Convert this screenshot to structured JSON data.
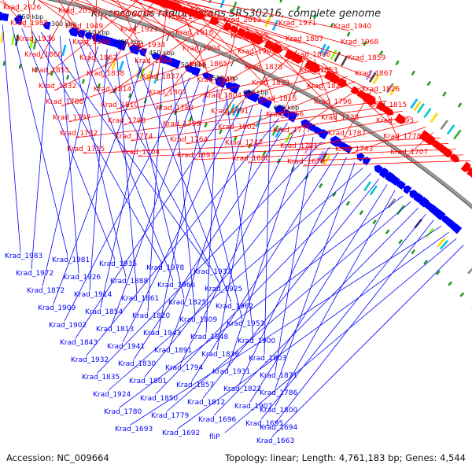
{
  "title": "Kineococcus radiotolerans SRS30216, complete genome",
  "accession": "Accession: NC_009664",
  "topology": "Topology: linear; Length: 4,761,183 bp; Genes: 4,544",
  "colors": {
    "forward": "#ff0000",
    "reverse": "#0000ff",
    "backbone": "#999999"
  },
  "scale_ticks": [
    {
      "label": "250 kbp",
      "value_kbp": 250
    },
    {
      "label": "300 kbp",
      "value_kbp": 300
    },
    {
      "label": "350 kbp",
      "value_kbp": 350
    },
    {
      "label": "400 kbp",
      "value_kbp": 400
    },
    {
      "label": "450 kbp",
      "value_kbp": 450
    },
    {
      "label": "500 kbp",
      "value_kbp": 500
    },
    {
      "label": "550 kbp",
      "value_kbp": 550
    },
    {
      "label": "600 kbp",
      "value_kbp": 600
    },
    {
      "label": "650 kbp",
      "value_kbp": 650
    }
  ],
  "red_labels": [
    "Krad_2026",
    "Krad_2033",
    "Krad_2034",
    "Krad_2006",
    "Krad_2013",
    "Krad_1971",
    "Krad_1940",
    "Krad_1985",
    "Krad_1949",
    "Krad_1923",
    "Krad_1918",
    "Krad_1895",
    "Krad_1887",
    "Krad_1968",
    "Krad_1936",
    "Krad_1908",
    "Krad_1934",
    "Krad_1904",
    "Krad_1903",
    "Krad_1886",
    "Krad_1859",
    "Krad_1860",
    "Krad_1862",
    "Krad_1864",
    "Krad_1865",
    "Krad_1878",
    "Krad_1863",
    "Krad_1867",
    "Krad_1855",
    "Krad_1838",
    "Krad_1837",
    "Krad_1840",
    "Krad_1839",
    "Krad_1827",
    "Krad_1826",
    "Krad_1832",
    "Krad_1814",
    "Krad_1807",
    "Krad_1804",
    "Krad_1816",
    "Krad_1796",
    "Krad_1815",
    "Krad_1788",
    "Krad_1810",
    "Krad_1783",
    "Krad_1791",
    "Krad_1766",
    "Krad_1738",
    "Krad_1795",
    "Krad_1797",
    "Krad_1798",
    "Krad_1799",
    "Krad_1802",
    "Krad_1777",
    "Krad_1787",
    "Krad_1778",
    "Krad_1782",
    "Krad_1774",
    "Krad_1764",
    "Krad_1747",
    "Krad_1721",
    "Krad_1743",
    "Krad_1707",
    "Krad_1715",
    "Krad_1704",
    "Krad_1697",
    "Krad_1680",
    "Krad_1679"
  ],
  "blue_labels": [
    "Krad_1983",
    "Krad_1981",
    "Krad_1935",
    "Krad_1978",
    "Krad_1933",
    "Krad_1972",
    "Krad_1926",
    "Krad_1888",
    "Krad_1966",
    "Krad_1925",
    "Krad_1872",
    "Krad_1914",
    "Krad_1861",
    "Krad_1825",
    "Krad_1962",
    "Krad_1909",
    "Krad_1854",
    "Krad_1820",
    "Krad_1809",
    "Krad_1953",
    "Krad_1902",
    "Krad_1813",
    "Krad_1943",
    "Krad_1848",
    "Krad_1900",
    "Krad_1843",
    "Krad_1941",
    "Krad_1891",
    "Krad_1836",
    "Krad_1803",
    "Krad_1932",
    "Krad_1830",
    "Krad_1794",
    "Krad_1931",
    "Krad_1871",
    "Krad_1835",
    "Krad_1801",
    "Krad_1857",
    "Krad_1822",
    "Krad_1786",
    "Krad_1924",
    "Krad_1850",
    "Krad_1812",
    "Krad_1907",
    "Krad_1800",
    "Krad_1780",
    "Krad_1779",
    "Krad_1696",
    "Krad_1695",
    "Krad_1694",
    "Krad_1693",
    "Krad_1692",
    "fliP",
    "Krad_1663"
  ]
}
